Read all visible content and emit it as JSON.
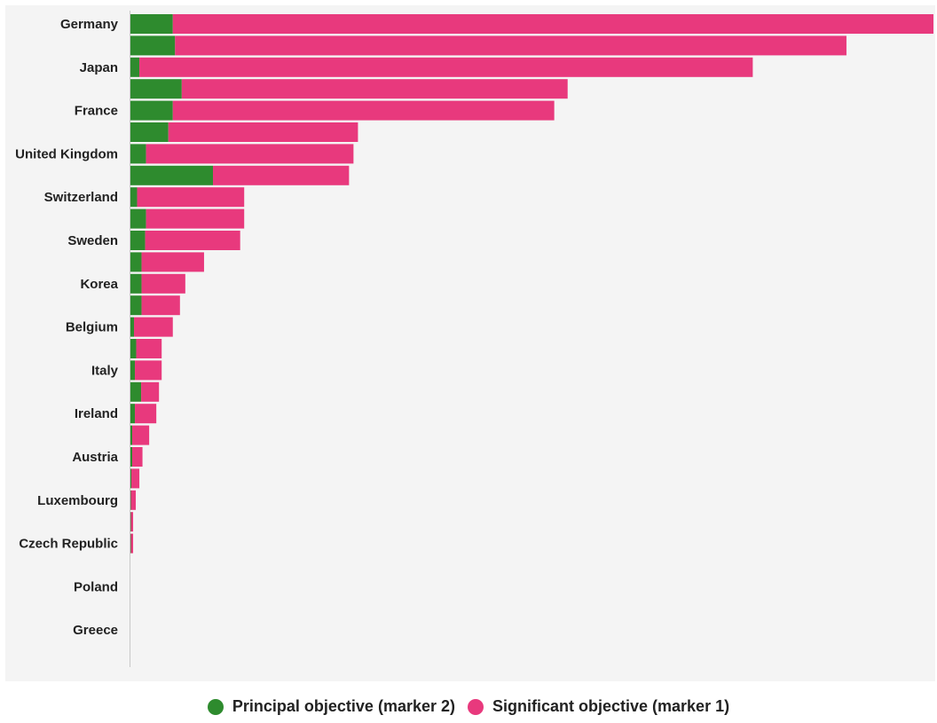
{
  "chart_data": {
    "type": "bar",
    "orientation": "horizontal",
    "stacked": true,
    "title": "",
    "xlabel": "",
    "ylabel": "",
    "xlim": [
      0,
      180
    ],
    "grid": false,
    "legend_position": "bottom",
    "tick_labels": [
      "Germany",
      "Japan",
      "France",
      "United Kingdom",
      "Switzerland",
      "Sweden",
      "Korea",
      "Belgium",
      "Italy",
      "Ireland",
      "Austria",
      "Luxembourg",
      "Czech Republic",
      "Poland",
      "Greece"
    ],
    "rows": [
      {
        "principal": 9.5,
        "significant": 170.5
      },
      {
        "principal": 10,
        "significant": 150.5
      },
      {
        "principal": 2,
        "significant": 137.5
      },
      {
        "principal": 11.5,
        "significant": 86.5
      },
      {
        "principal": 9.5,
        "significant": 85.5
      },
      {
        "principal": 8.5,
        "significant": 42.5
      },
      {
        "principal": 3.5,
        "significant": 46.5
      },
      {
        "principal": 18.5,
        "significant": 30.5
      },
      {
        "principal": 1.5,
        "significant": 24
      },
      {
        "principal": 3.5,
        "significant": 22
      },
      {
        "principal": 3.3,
        "significant": 21.3
      },
      {
        "principal": 2.5,
        "significant": 14
      },
      {
        "principal": 2.5,
        "significant": 9.8
      },
      {
        "principal": 2.5,
        "significant": 8.6
      },
      {
        "principal": 0.8,
        "significant": 8.7
      },
      {
        "principal": 1.3,
        "significant": 5.7
      },
      {
        "principal": 1.0,
        "significant": 6.0
      },
      {
        "principal": 2.4,
        "significant": 4.0
      },
      {
        "principal": 1.0,
        "significant": 4.8
      },
      {
        "principal": 0.4,
        "significant": 3.8
      },
      {
        "principal": 0.4,
        "significant": 2.3
      },
      {
        "principal": 0.2,
        "significant": 1.8
      },
      {
        "principal": 0.1,
        "significant": 1.1
      },
      {
        "principal": 0.1,
        "significant": 0.5
      },
      {
        "principal": 0.1,
        "significant": 0.5
      },
      {
        "principal": 0,
        "significant": 0
      },
      {
        "principal": 0,
        "significant": 0
      },
      {
        "principal": 0,
        "significant": 0
      },
      {
        "principal": 0,
        "significant": 0
      },
      {
        "principal": 0,
        "significant": 0
      }
    ],
    "series": [
      {
        "name": "Principal objective (marker 2)",
        "color": "#2e8b2e"
      },
      {
        "name": "Significant objective (marker 1)",
        "color": "#e8397d"
      }
    ]
  },
  "legend": {
    "principal_label": "Principal objective (marker 2)",
    "significant_label": "Significant objective (marker 1)"
  }
}
